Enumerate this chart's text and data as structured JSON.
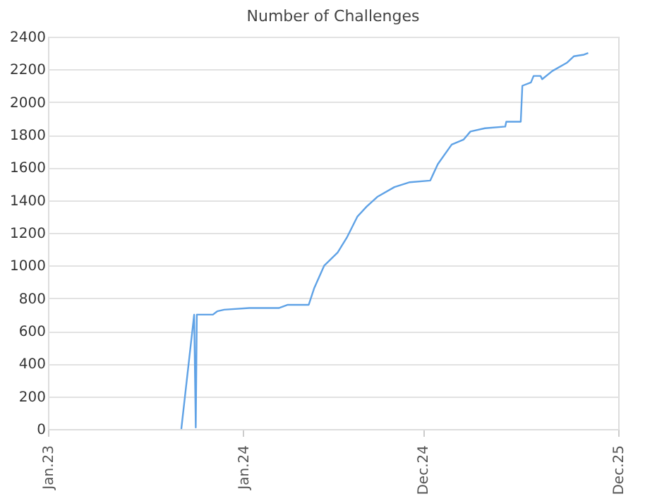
{
  "chart_data": {
    "type": "line",
    "title": "Number of Challenges",
    "x": [
      "2023-09-07",
      "2023-10-01",
      "2023-10-04",
      "2023-10-06",
      "2023-11-05",
      "2023-11-13",
      "2023-11-26",
      "2024-01-12",
      "2024-03-07",
      "2024-03-24",
      "2024-04-25",
      "2024-05-02",
      "2024-05-12",
      "2024-05-31",
      "2024-06-25",
      "2024-07-12",
      "2024-08-01",
      "2024-08-18",
      "2024-09-07",
      "2024-10-09",
      "2024-11-07",
      "2024-12-15",
      "2024-12-29",
      "2025-01-24",
      "2025-02-15",
      "2025-02-28",
      "2025-03-27",
      "2025-05-04",
      "2025-05-06",
      "2025-06-02",
      "2025-06-05",
      "2025-06-21",
      "2025-06-26",
      "2025-07-09",
      "2025-07-12",
      "2025-07-31",
      "2025-08-27",
      "2025-09-09",
      "2025-09-28",
      "2025-10-06"
    ],
    "series": [
      {
        "color": "#5fa2e6",
        "values": [
          0,
          700,
          10,
          700,
          700,
          720,
          730,
          740,
          740,
          760,
          760,
          760,
          860,
          1000,
          1080,
          1170,
          1300,
          1360,
          1420,
          1480,
          1510,
          1520,
          1620,
          1740,
          1770,
          1820,
          1840,
          1850,
          1880,
          1880,
          2100,
          2120,
          2160,
          2160,
          2140,
          2190,
          2240,
          2280,
          2290,
          2300
        ]
      }
    ],
    "xlim": [
      "2023-01-01",
      "2025-12-01"
    ],
    "xticks": [
      {
        "value": "2023-01-01",
        "label": "Jan.23"
      },
      {
        "value": "2024-01-01",
        "label": "Jan.24"
      },
      {
        "value": "2024-12-01",
        "label": "Dec.24"
      },
      {
        "value": "2025-12-01",
        "label": "Dec.25"
      }
    ],
    "ylim": [
      0,
      2400
    ],
    "yticks": [
      0,
      200,
      400,
      600,
      800,
      1000,
      1200,
      1400,
      1600,
      1800,
      2000,
      2200,
      2400
    ],
    "grid": "y",
    "marker": "none",
    "line_style": "solid"
  }
}
